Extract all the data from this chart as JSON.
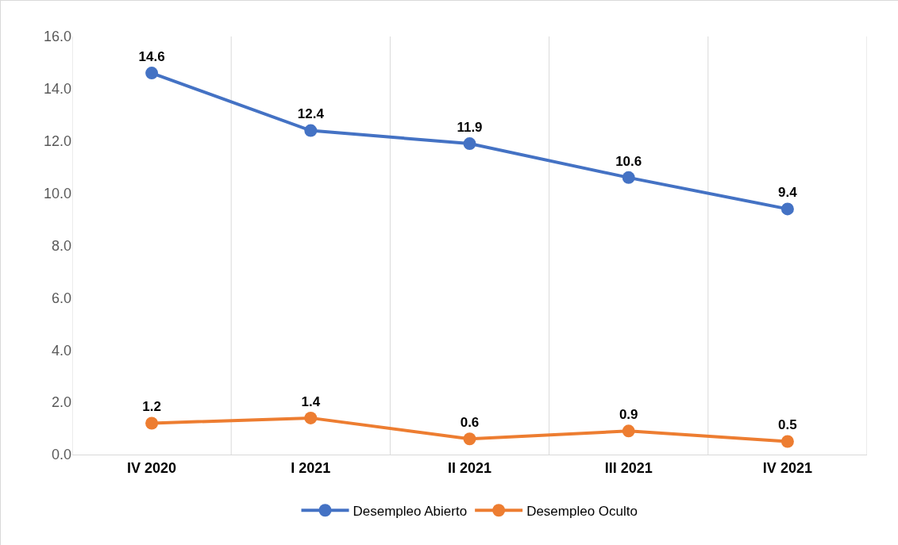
{
  "chart_data": {
    "type": "line",
    "categories": [
      "IV 2020",
      "I 2021",
      "II 2021",
      "III 2021",
      "IV 2021"
    ],
    "series": [
      {
        "name": "Desempleo Abierto",
        "color": "#4472c4",
        "values": [
          14.6,
          12.4,
          11.9,
          10.6,
          9.4
        ]
      },
      {
        "name": "Desempleo Oculto",
        "color": "#ed7d31",
        "values": [
          1.2,
          1.4,
          0.6,
          0.9,
          0.5
        ]
      }
    ],
    "ylim": [
      0,
      16
    ],
    "yticks": [
      {
        "value": 0,
        "label": "0.0"
      },
      {
        "value": 2,
        "label": "2.0"
      },
      {
        "value": 4,
        "label": "4.0"
      },
      {
        "value": 6,
        "label": "6.0"
      },
      {
        "value": 8,
        "label": "8.0"
      },
      {
        "value": 10,
        "label": "10.0"
      },
      {
        "value": 12,
        "label": "12.0"
      },
      {
        "value": 14,
        "label": "14.0"
      },
      {
        "value": 16,
        "label": "16.0"
      }
    ],
    "grid": "x",
    "legend": "bottom",
    "marker": "circle",
    "line_style": "solid",
    "data_labels": true
  }
}
